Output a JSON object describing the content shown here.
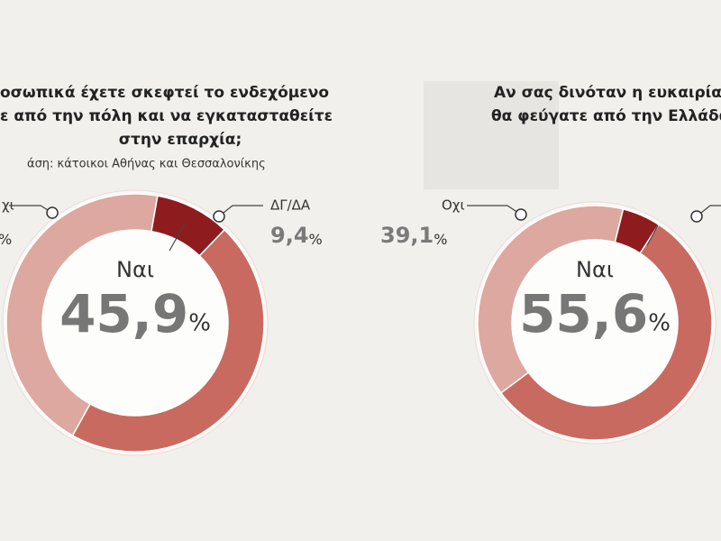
{
  "chart_data": [
    {
      "type": "donut",
      "title": [
        "οσωπικά έχετε σκεφτεί το ενδεχόμενο",
        "ε από την πόλη και να εγκατασταθείτε",
        "στην επαρχία;"
      ],
      "subtitle": "άση: κάτοικοι Αθήνας και Θεσσαλονίκης",
      "categories": [
        "ΔΓ/ΔΑ",
        "Ναι",
        "χι"
      ],
      "values": [
        9.4,
        45.9,
        44.7
      ],
      "value_labels": [
        "9,4%",
        "45,9%",
        "%"
      ],
      "colors": [
        "#8e1c1e",
        "#c86a60",
        "#dca8a0"
      ]
    },
    {
      "type": "donut",
      "title": [
        "Αν σας δινόταν η ευκαιρία,",
        "θα φεύγατε από την Ελλάδα"
      ],
      "categories": [
        null,
        "Ναι",
        "Οχι"
      ],
      "values": [
        5.3,
        55.6,
        39.1
      ],
      "value_labels": [
        null,
        "55,6%",
        "39,1%"
      ],
      "colors": [
        "#8e1c1e",
        "#c86a60",
        "#dca8a0"
      ]
    }
  ]
}
